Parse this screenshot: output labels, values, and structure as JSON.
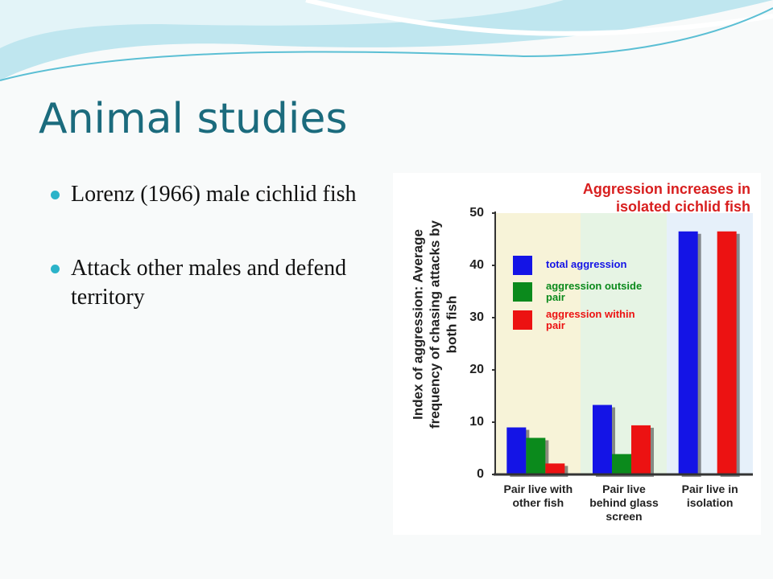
{
  "slide": {
    "title": "Animal studies",
    "bullets": [
      "Lorenz (1966) male cichlid fish",
      "Attack other males and defend territory"
    ]
  },
  "chart_data": {
    "type": "bar",
    "title": "Aggression increases in isolated cichlid fish",
    "y_label": "Index of aggression: Average frequency of chasing attacks by both fish",
    "categories": [
      "Pair live with other fish",
      "Pair live behind glass screen",
      "Pair live in isolation"
    ],
    "series": [
      {
        "name": "total aggression",
        "color": "#1414e6",
        "values": [
          9,
          13.3,
          46.5
        ]
      },
      {
        "name": "aggression outside pair",
        "color": "#0b8a1c",
        "values": [
          7,
          3.9,
          null
        ]
      },
      {
        "name": "aggression within pair",
        "color": "#ec1212",
        "values": [
          2.1,
          9.4,
          46.5
        ]
      }
    ],
    "ylim": [
      0,
      50
    ],
    "yticks": [
      0,
      10,
      20,
      30,
      40,
      50
    ],
    "grid": false
  }
}
